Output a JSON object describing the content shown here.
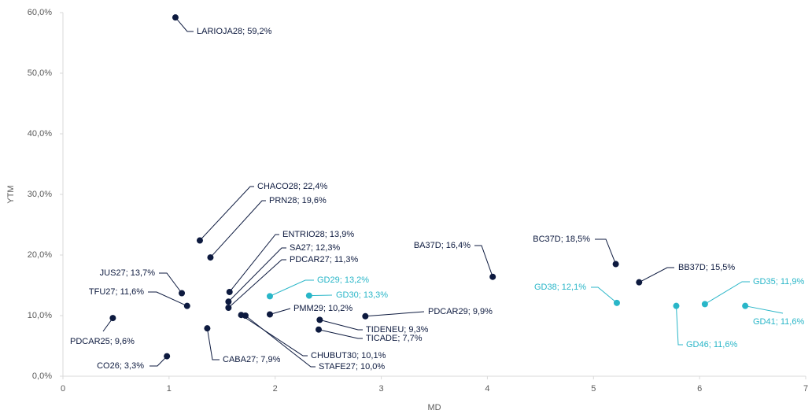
{
  "chart_data": {
    "type": "scatter",
    "xlabel": "MD",
    "ylabel": "YTM",
    "xlim": [
      0,
      7
    ],
    "xticks": [
      0,
      1,
      2,
      3,
      4,
      5,
      6,
      7
    ],
    "ylim": [
      0,
      60
    ],
    "yticks": [
      {
        "value": 0,
        "label": "0,0%"
      },
      {
        "value": 10,
        "label": "10,0%"
      },
      {
        "value": 20,
        "label": "20,0%"
      },
      {
        "value": 30,
        "label": "30,0%"
      },
      {
        "value": 40,
        "label": "40,0%"
      },
      {
        "value": 50,
        "label": "50,0%"
      },
      {
        "value": 60,
        "label": "60,0%"
      }
    ],
    "series": [
      {
        "color": "#0d1a3f",
        "x": [
          1.06,
          1.29,
          1.39,
          1.57,
          1.56,
          1.56,
          1.12,
          1.17,
          0.47,
          0.98,
          1.36,
          1.68,
          1.72,
          1.95,
          2.42,
          2.41,
          2.85,
          4.05,
          5.21,
          5.43
        ],
        "values": [
          59.2,
          22.4,
          19.6,
          13.9,
          12.3,
          11.3,
          13.7,
          11.6,
          9.6,
          3.3,
          7.9,
          10.1,
          10.0,
          10.2,
          9.3,
          7.7,
          9.9,
          16.4,
          18.5,
          15.5
        ],
        "value_labels": [
          "LARIOJA28; 59,2%",
          "CHACO28; 22,4%",
          "PRN28; 19,6%",
          "ENTRIO28; 13,9%",
          "SA27; 12,3%",
          "PDCAR27; 11,3%",
          "JUS27; 13,7%",
          "TFU27; 11,6%",
          "PDCAR25; 9,6%",
          "CO26; 3,3%",
          "CABA27; 7,9%",
          "CHUBUT30; 10,1%",
          "STAFE27; 10,0%",
          "PMM29;  10,2%",
          "TIDENEU; 9,3%",
          "TICADE; 7,7%",
          "PDCAR29; 9,9%",
          "BA37D; 16,4%",
          "BC37D; 18,5%",
          "BB37D; 15,5%"
        ]
      },
      {
        "color": "#29b6c8",
        "x": [
          1.95,
          2.32,
          5.22,
          5.78,
          6.05,
          6.43
        ],
        "values": [
          13.2,
          13.3,
          12.1,
          11.6,
          11.9,
          11.6
        ],
        "value_labels": [
          "GD29; 13,2%",
          "GD30; 13,3%",
          "GD38; 12,1%",
          "GD46; 11,6%",
          "GD35; 11,9%",
          "GD41; 11,6%"
        ]
      }
    ]
  }
}
